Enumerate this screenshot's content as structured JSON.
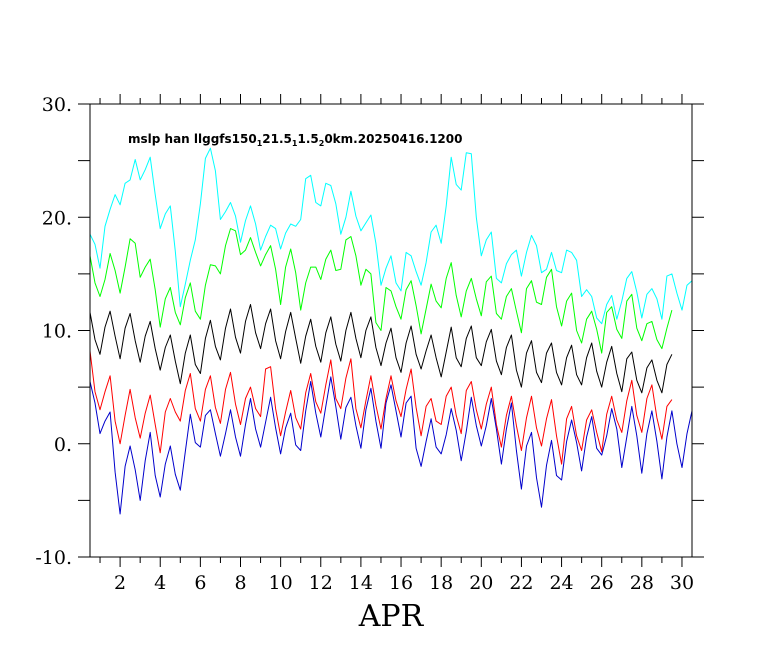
{
  "chart_data": {
    "type": "line",
    "title": "mslp han llggfs150",
    "title_parts": [
      {
        "text": "mslp han llggfs150",
        "sub": false
      },
      {
        "text": "1",
        "sub": true
      },
      {
        "text": "21.5",
        "sub": false
      },
      {
        "text": "1",
        "sub": true
      },
      {
        "text": "1.5",
        "sub": false
      },
      {
        "text": "2",
        "sub": true
      },
      {
        "text": "0km.20250416.1200",
        "sub": false
      }
    ],
    "xlabel": "APR",
    "ylabel": "",
    "xlim": [
      0.5,
      30.5
    ],
    "ylim": [
      -10,
      30
    ],
    "x_ticks": [
      2,
      4,
      6,
      8,
      10,
      12,
      14,
      16,
      18,
      20,
      22,
      24,
      26,
      28,
      30
    ],
    "x_tick_labels": [
      "2",
      "4",
      "6",
      "8",
      "10",
      "12",
      "14",
      "16",
      "18",
      "20",
      "22",
      "24",
      "26",
      "28",
      "30"
    ],
    "y_ticks": [
      -10,
      0,
      10,
      20,
      30
    ],
    "y_tick_labels": [
      "-10.",
      "0.",
      "10.",
      "20.",
      "30."
    ],
    "grid": false,
    "x_start": 0.5,
    "x_step": 0.25,
    "series": [
      {
        "color": "#00ffff",
        "values": [
          18.5,
          17.6,
          15.5,
          19.2,
          20.7,
          22.0,
          21.1,
          23.0,
          23.3,
          25.1,
          23.3,
          24.2,
          25.3,
          22.0,
          19.0,
          20.3,
          21.0,
          17.0,
          12.1,
          14.1,
          16.2,
          18.0,
          21.2,
          25.2,
          26.1,
          24.1,
          19.8,
          20.5,
          21.3,
          20.1,
          17.8,
          19.7,
          21.0,
          19.4,
          17.1,
          18.3,
          19.3,
          19.0,
          17.2,
          18.6,
          19.4,
          19.2,
          19.8,
          23.4,
          23.7,
          21.3,
          21.0,
          23.0,
          22.8,
          21.2,
          18.5,
          20.0,
          22.3,
          20.1,
          18.8,
          19.5,
          20.2,
          17.7,
          14.0,
          15.5,
          16.6,
          14.2,
          13.5,
          16.9,
          16.6,
          15.2,
          14.0,
          16.0,
          18.7,
          19.3,
          17.7,
          21.0,
          25.3,
          22.9,
          22.4,
          25.7,
          25.6,
          20.0,
          16.6,
          18.0,
          18.7,
          14.6,
          14.2,
          15.9,
          16.7,
          17.1,
          14.8,
          16.9,
          18.4,
          17.5,
          15.1,
          15.4,
          16.9,
          15.3,
          15.1,
          17.1,
          16.9,
          16.2,
          13.0,
          13.6,
          13.0,
          11.1,
          10.6,
          12.3,
          13.1,
          11.0,
          12.6,
          14.6,
          15.2,
          13.4,
          11.1,
          13.2,
          13.7,
          12.8,
          11.0,
          14.8,
          15.0,
          13.3,
          11.8,
          14.0,
          14.4
        ]
      },
      {
        "color": "#00ff00",
        "values": [
          16.6,
          14.2,
          13.0,
          14.5,
          16.8,
          15.3,
          13.3,
          15.6,
          18.1,
          17.7,
          14.7,
          15.6,
          16.3,
          13.6,
          10.3,
          12.8,
          13.8,
          11.6,
          10.5,
          12.9,
          14.2,
          11.7,
          11.0,
          14.0,
          15.8,
          15.7,
          15.0,
          17.5,
          19.0,
          18.8,
          16.7,
          17.1,
          18.2,
          16.9,
          15.7,
          16.7,
          17.5,
          15.4,
          12.3,
          15.6,
          17.2,
          15.1,
          11.8,
          14.2,
          15.6,
          15.6,
          14.5,
          16.3,
          17.1,
          15.3,
          15.4,
          18.0,
          18.3,
          16.6,
          14.0,
          15.4,
          15.0,
          10.7,
          10.0,
          13.8,
          13.5,
          12.1,
          11.0,
          13.6,
          14.4,
          12.2,
          9.7,
          11.9,
          14.1,
          12.6,
          12.0,
          14.6,
          16.0,
          13.1,
          11.2,
          13.5,
          14.6,
          12.8,
          11.3,
          14.3,
          14.8,
          11.5,
          11.0,
          13.0,
          13.7,
          11.7,
          9.8,
          13.7,
          14.4,
          12.5,
          12.3,
          14.7,
          15.4,
          12.1,
          10.4,
          12.6,
          13.3,
          10.0,
          8.9,
          11.0,
          11.7,
          10.1,
          8.0,
          11.6,
          12.1,
          10.1,
          9.3,
          12.6,
          13.2,
          10.2,
          9.1,
          10.6,
          10.8,
          9.2,
          8.4,
          10.2,
          11.8
        ]
      },
      {
        "color": "#000000",
        "values": [
          11.6,
          9.2,
          7.9,
          10.3,
          11.7,
          9.5,
          7.5,
          10.2,
          11.5,
          9.1,
          7.2,
          9.5,
          10.8,
          8.4,
          6.5,
          8.5,
          9.6,
          7.3,
          5.3,
          8.0,
          9.6,
          7.0,
          6.2,
          9.3,
          10.9,
          8.6,
          7.4,
          10.2,
          11.9,
          9.4,
          8.0,
          10.8,
          12.3,
          9.8,
          8.4,
          10.6,
          11.9,
          9.1,
          7.5,
          9.9,
          11.6,
          9.3,
          7.1,
          9.5,
          11.0,
          8.6,
          7.2,
          9.8,
          11.2,
          8.8,
          7.3,
          10.0,
          11.6,
          9.3,
          7.6,
          10.0,
          11.2,
          8.5,
          6.9,
          8.9,
          10.2,
          7.6,
          6.3,
          8.9,
          10.4,
          7.9,
          6.6,
          8.2,
          9.6,
          7.6,
          5.9,
          8.1,
          10.3,
          7.6,
          6.8,
          9.3,
          10.4,
          7.6,
          6.9,
          9.0,
          10.1,
          7.3,
          6.1,
          8.5,
          9.6,
          6.5,
          5.0,
          8.0,
          9.1,
          6.3,
          5.4,
          8.0,
          8.9,
          6.3,
          5.2,
          7.6,
          8.7,
          6.1,
          5.2,
          7.6,
          8.9,
          6.4,
          5.0,
          7.2,
          8.6,
          6.2,
          4.6,
          7.5,
          8.1,
          5.6,
          4.5,
          6.7,
          7.4,
          5.6,
          4.5,
          7.0,
          7.9
        ]
      },
      {
        "color": "#ff0000",
        "values": [
          8.2,
          4.6,
          3.0,
          4.6,
          6.0,
          2.0,
          0.0,
          2.5,
          4.8,
          2.3,
          0.5,
          2.7,
          4.3,
          1.7,
          -0.8,
          2.8,
          4.0,
          2.8,
          2.0,
          4.7,
          6.2,
          3.1,
          2.0,
          4.8,
          6.0,
          3.2,
          1.8,
          4.8,
          6.3,
          3.5,
          1.7,
          4.0,
          5.0,
          3.1,
          2.4,
          6.6,
          6.8,
          3.1,
          0.7,
          2.8,
          4.7,
          2.3,
          1.3,
          4.5,
          6.2,
          3.7,
          2.7,
          5.2,
          7.4,
          4.0,
          3.1,
          5.8,
          7.5,
          3.1,
          1.4,
          3.8,
          6.0,
          3.4,
          1.3,
          4.0,
          6.0,
          3.8,
          2.4,
          4.8,
          6.6,
          3.2,
          0.7,
          3.3,
          4.0,
          2.0,
          1.7,
          4.2,
          5.0,
          2.5,
          0.9,
          4.7,
          5.5,
          3.0,
          1.3,
          3.5,
          5.0,
          1.7,
          -0.3,
          2.5,
          4.2,
          1.6,
          -0.6,
          2.3,
          4.2,
          1.4,
          -0.2,
          2.2,
          3.9,
          0.7,
          -1.8,
          2.2,
          3.3,
          0.7,
          -0.6,
          2.1,
          3.0,
          1.0,
          -0.7,
          2.6,
          4.2,
          2.1,
          1.0,
          3.8,
          5.6,
          2.5,
          1.0,
          4.0,
          5.2,
          2.3,
          0.4,
          3.3,
          3.9
        ]
      },
      {
        "color": "#0000cc",
        "values": [
          5.5,
          3.6,
          0.9,
          2.0,
          2.8,
          -2.5,
          -6.2,
          -2.0,
          -0.2,
          -2.3,
          -5.0,
          -1.5,
          1.0,
          -2.8,
          -4.7,
          -1.8,
          -0.2,
          -2.7,
          -4.1,
          -0.7,
          2.6,
          0.1,
          -0.3,
          2.5,
          3.0,
          0.9,
          -1.1,
          0.9,
          3.0,
          0.6,
          -1.1,
          1.7,
          4.0,
          1.3,
          -0.3,
          1.9,
          4.1,
          1.4,
          -0.9,
          1.4,
          2.7,
          -0.1,
          -0.6,
          2.9,
          5.5,
          2.7,
          0.6,
          3.3,
          5.9,
          3.3,
          0.4,
          3.2,
          4.1,
          1.6,
          -0.4,
          3.0,
          4.9,
          2.0,
          -0.4,
          3.6,
          5.2,
          2.9,
          0.6,
          3.6,
          4.2,
          -0.4,
          -2.0,
          0.2,
          2.2,
          -0.3,
          -0.9,
          0.8,
          3.1,
          1.2,
          -1.5,
          1.1,
          4.1,
          1.6,
          -0.2,
          1.6,
          4.0,
          1.3,
          -1.8,
          1.3,
          3.6,
          -0.6,
          -4.0,
          -0.2,
          1.0,
          -3.0,
          -5.6,
          -1.9,
          0.3,
          -2.8,
          -3.2,
          0.2,
          2.1,
          0.1,
          -2.4,
          0.6,
          2.4,
          -0.4,
          -1.0,
          0.7,
          3.1,
          1.3,
          -2.1,
          0.6,
          3.3,
          0.7,
          -2.6,
          0.9,
          2.9,
          0.2,
          -3.1,
          0.6,
          2.9,
          0.0,
          -2.1,
          0.9,
          2.9
        ]
      }
    ]
  }
}
